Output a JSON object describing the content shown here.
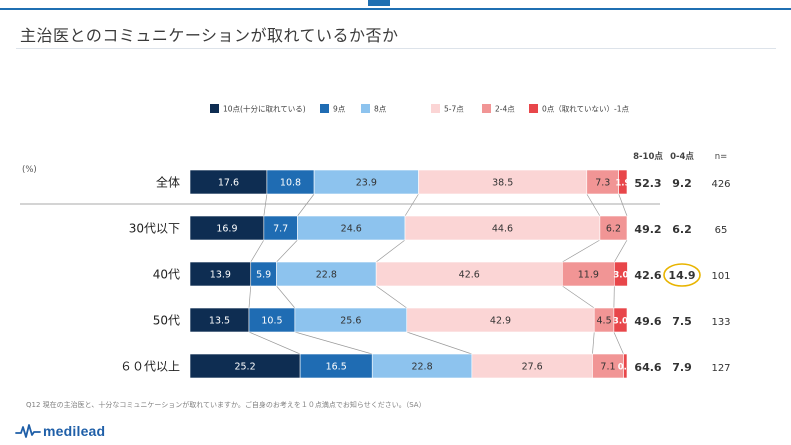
{
  "title": "主治医とのコミュニケーションが取れているか否か",
  "footnote": "Q12 現在の主治医と、十分なコミュニケーションが取れていますか。ご自身のお考えを１０点満点でお知らせください。（SA）",
  "logo": {
    "text": "medilead",
    "icon": "heartbeat-pulse-icon"
  },
  "chart_data": {
    "type": "bar",
    "orientation": "horizontal",
    "stacked": "100%",
    "unit_label": "(%)",
    "categories": [
      "全体",
      "30代以下",
      "40代",
      "50代",
      "６０代以上"
    ],
    "series": [
      {
        "name": "10点(十分に取れている)",
        "color": "#0e2d52",
        "values": [
          17.6,
          16.9,
          13.9,
          13.5,
          25.2
        ]
      },
      {
        "name": "9点",
        "color": "#1f6cb3",
        "values": [
          10.8,
          7.7,
          5.9,
          10.5,
          16.5
        ]
      },
      {
        "name": "8点",
        "color": "#8dc3ee",
        "values": [
          23.9,
          24.6,
          22.8,
          25.6,
          22.8
        ]
      },
      {
        "name": "5-7点",
        "color": "#fbd5d5",
        "values": [
          38.5,
          44.6,
          42.6,
          42.9,
          27.6
        ]
      },
      {
        "name": "2-4点",
        "color": "#f19595",
        "values": [
          7.3,
          6.2,
          11.9,
          4.5,
          7.1
        ]
      },
      {
        "name": "0点（取れていない）-1点",
        "color": "#e8464a",
        "values": [
          1.9,
          null,
          3.0,
          3.0,
          0.8
        ]
      }
    ],
    "summary_headers": [
      "8-10点",
      "0-4点",
      "n="
    ],
    "summary": [
      {
        "top": "52.3",
        "bottom": "9.2",
        "n": "426"
      },
      {
        "top": "49.2",
        "bottom": "6.2",
        "n": "65"
      },
      {
        "top": "42.6",
        "bottom": "14.9",
        "n": "101"
      },
      {
        "top": "49.6",
        "bottom": "7.5",
        "n": "133"
      },
      {
        "top": "64.6",
        "bottom": "7.9",
        "n": "127"
      }
    ],
    "highlight": {
      "row": 2,
      "column": "bottom",
      "color": "#e8b400"
    },
    "legend_position": "top",
    "grid": false
  }
}
